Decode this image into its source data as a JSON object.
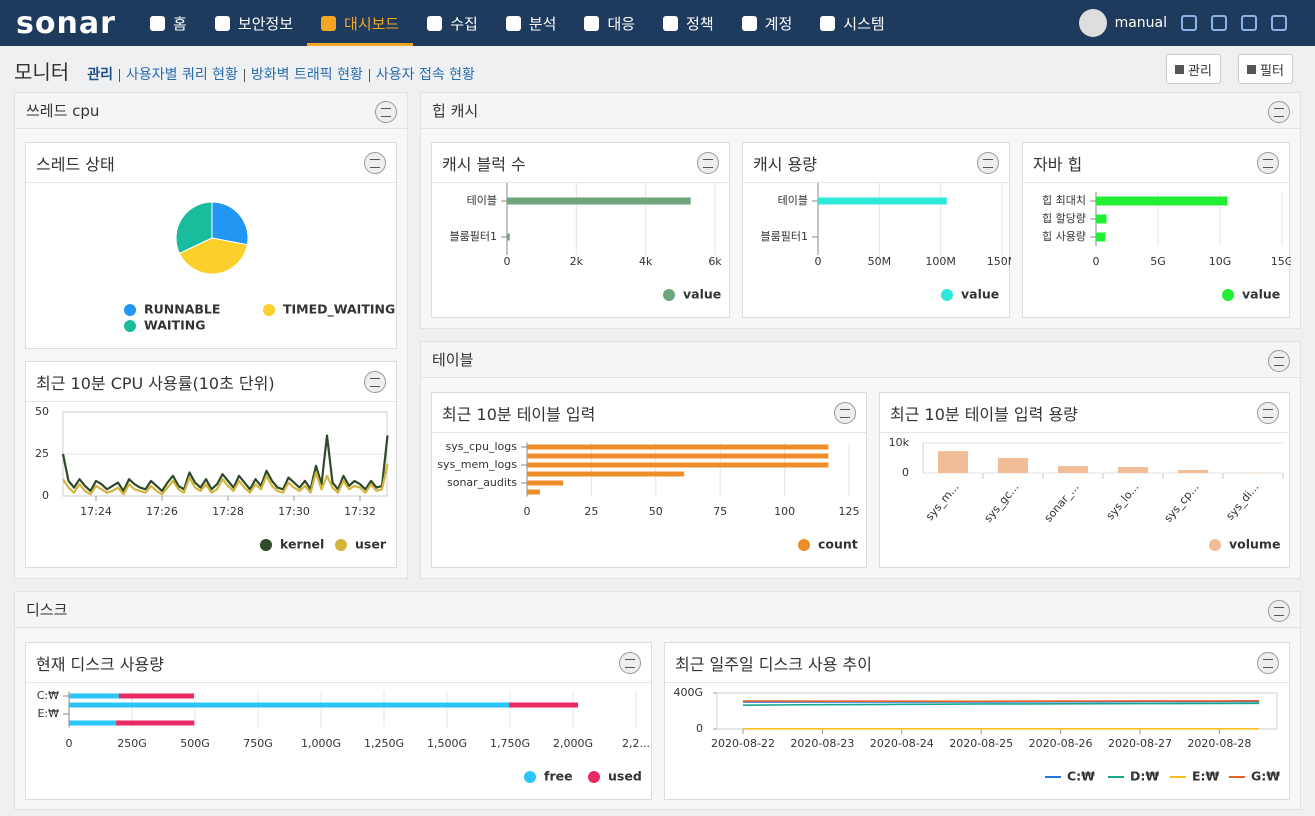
{
  "nav": {
    "logo": "sonar",
    "items": [
      "홈",
      "보안정보",
      "대시보드",
      "수집",
      "분석",
      "대응",
      "정책",
      "계정",
      "시스템"
    ],
    "user": "manual"
  },
  "header": {
    "title": "모니터",
    "links": [
      "관리",
      "사용자별 쿼리 현황",
      "방화벽 트래픽 현황",
      "사용자 접속 현황"
    ],
    "buttons": [
      "관리",
      "필터"
    ]
  },
  "groups": [
    "쓰레드 cpu",
    "힙 캐시",
    "테이블",
    "디스크"
  ],
  "chart_data": [
    {
      "type": "pie",
      "title": "스레드 상태",
      "categories": [
        "RUNNABLE",
        "TIMED_WAITING",
        "WAITING"
      ],
      "values": [
        28,
        40,
        32
      ],
      "colors": [
        "#2196f3",
        "#fbd02a",
        "#19bc9c"
      ]
    },
    {
      "type": "line",
      "title": "최근 10분 CPU 사용률(10초 단위)",
      "categories": [
        null,
        null,
        null,
        null,
        null,
        null,
        "17:24",
        null,
        null,
        null,
        null,
        null,
        null,
        null,
        null,
        null,
        null,
        null,
        "17:26",
        null,
        null,
        null,
        null,
        null,
        null,
        null,
        null,
        null,
        null,
        null,
        "17:28",
        null,
        null,
        null,
        null,
        null,
        null,
        null,
        null,
        null,
        null,
        null,
        "17:30",
        null,
        null,
        null,
        null,
        null,
        null,
        null,
        null,
        null,
        null,
        null,
        "17:32",
        null,
        null,
        null,
        null,
        null
      ],
      "series": [
        {
          "name": "kernel",
          "color": "#2f4a2a",
          "values": [
            25,
            9,
            5,
            10,
            6,
            3,
            9,
            7,
            4,
            6,
            8,
            3,
            10,
            7,
            5,
            4,
            9,
            6,
            3,
            8,
            12,
            6,
            4,
            14,
            8,
            5,
            10,
            4,
            7,
            13,
            9,
            5,
            12,
            8,
            4,
            10,
            6,
            15,
            9,
            5,
            4,
            11,
            8,
            5,
            9,
            4,
            18,
            7,
            36,
            8,
            4,
            12,
            6,
            9,
            7,
            4,
            9,
            5,
            6,
            36
          ]
        },
        {
          "name": "user",
          "color": "#d4b53c",
          "values": [
            10,
            5,
            2,
            7,
            3,
            1,
            6,
            4,
            2,
            3,
            5,
            1,
            7,
            4,
            3,
            2,
            6,
            3,
            1,
            5,
            9,
            4,
            2,
            11,
            5,
            3,
            7,
            2,
            4,
            10,
            6,
            3,
            9,
            5,
            2,
            7,
            4,
            12,
            6,
            3,
            2,
            8,
            5,
            3,
            6,
            2,
            14,
            4,
            12,
            5,
            2,
            9,
            4,
            6,
            5,
            2,
            7,
            3,
            4,
            19
          ]
        }
      ],
      "ylim": [
        0,
        50
      ],
      "yticks": [
        0,
        25,
        50
      ],
      "grid": true
    },
    {
      "type": "hbar",
      "title": "캐시 블럭 수",
      "categories": [
        "테이블",
        "블룸필터1"
      ],
      "values": [
        5300,
        80
      ],
      "color": "#6ea57c",
      "legend": "value",
      "xlim": [
        0,
        6000
      ],
      "xticks": [
        0,
        {
          "value": 2000,
          "label": "2k"
        },
        {
          "value": 4000,
          "label": "4k"
        },
        {
          "value": 6000,
          "label": "6k"
        }
      ]
    },
    {
      "type": "hbar",
      "title": "캐시 용량",
      "categories": [
        "테이블",
        "블룸필터1"
      ],
      "values": [
        105000000,
        0
      ],
      "color": "#2ee8d8",
      "legend": "value",
      "xlim": [
        0,
        150000000
      ],
      "xticks": [
        0,
        {
          "value": 50000000,
          "label": "50M"
        },
        {
          "value": 100000000,
          "label": "100M"
        },
        {
          "value": 150000000,
          "label": "150M"
        }
      ]
    },
    {
      "type": "hbar",
      "title": "자바 힙",
      "categories": [
        "힙 최대치",
        "힙 할당량",
        "힙 사용량"
      ],
      "values": [
        10600000000,
        850000000,
        750000000
      ],
      "color": "#22ee33",
      "legend": "value",
      "xlim": [
        0,
        15000000000
      ],
      "xticks": [
        0,
        {
          "value": 5000000000,
          "label": "5G"
        },
        {
          "value": 10000000000,
          "label": "10G"
        },
        {
          "value": 15000000000,
          "label": "15G"
        }
      ]
    },
    {
      "type": "hbar",
      "title": "최근 10분 테이블 입력",
      "categories": [
        "sys_cpu_logs",
        null,
        "sys_mem_logs",
        null,
        "sonar_audits",
        null
      ],
      "values": [
        117,
        117,
        117,
        61,
        14,
        5
      ],
      "color": "#ee8c2a",
      "legend": "count",
      "xlim": [
        0,
        125
      ],
      "xticks": [
        0,
        25,
        50,
        75,
        100,
        125
      ]
    },
    {
      "type": "vbar",
      "title": "최근 10분 테이블 입력 용량",
      "categories": [
        "sys_m...",
        "sys_gc...",
        "sonar_...",
        "sys_lo...",
        "sys_cp...",
        "sys_di..."
      ],
      "values": [
        7300,
        5000,
        2300,
        2000,
        1000,
        100
      ],
      "color": "#f0bd96",
      "legend": "volume",
      "ylim": [
        0,
        10000
      ],
      "yticks": [
        0,
        {
          "value": 10000,
          "label": "10k"
        }
      ],
      "grid": true
    },
    {
      "type": "hbar",
      "title": "현재 디스크 사용량",
      "categories": [
        "C:₩",
        null,
        "E:₩",
        null
      ],
      "series": [
        {
          "name": "free",
          "color": "#29c5f6",
          "values": [
            198,
            1746,
            0,
            187
          ]
        },
        {
          "name": "used",
          "color": "#ea2a62",
          "values": [
            298,
            274,
            0,
            310
          ]
        }
      ],
      "xlim": [
        0,
        2250
      ],
      "xticks": [
        0,
        {
          "value": 250,
          "label": "250G"
        },
        {
          "value": 500,
          "label": "500G"
        },
        {
          "value": 750,
          "label": "750G"
        },
        {
          "value": 1000,
          "label": "1,000G"
        },
        {
          "value": 1250,
          "label": "1,250G"
        },
        {
          "value": 1500,
          "label": "1,500G"
        },
        {
          "value": 1750,
          "label": "1,750G"
        },
        {
          "value": 2000,
          "label": "2,000G"
        },
        {
          "value": 2250,
          "label": "2,2..."
        }
      ]
    },
    {
      "type": "line",
      "title": "최근 일주일 디스크 사용 추이",
      "categories": [
        "2020-08-22",
        null,
        "2020-08-23",
        null,
        "2020-08-24",
        null,
        "2020-08-25",
        null,
        "2020-08-26",
        null,
        "2020-08-27",
        null,
        "2020-08-28",
        null
      ],
      "series": [
        {
          "name": "C:₩",
          "color": "#1f77e0",
          "values": [
            300,
            300,
            300,
            300,
            300,
            300,
            301,
            302,
            303,
            304,
            305,
            305,
            306,
            306
          ]
        },
        {
          "name": "D:₩",
          "color": "#14a88e",
          "values": [
            265,
            268,
            270,
            272,
            274,
            276,
            278,
            279,
            280,
            281,
            282,
            283,
            284,
            285
          ]
        },
        {
          "name": "E:₩",
          "color": "#f5c020",
          "values": [
            2,
            2,
            2,
            2,
            2,
            2,
            2,
            2,
            2,
            2,
            2,
            2,
            2,
            2
          ]
        },
        {
          "name": "G:₩",
          "color": "#e8602c",
          "values": [
            310,
            310,
            309,
            309,
            309,
            308,
            308,
            309,
            310,
            311,
            312,
            312,
            312,
            313
          ]
        }
      ],
      "ylim": [
        0,
        400
      ],
      "yticks": [
        0,
        {
          "value": 400,
          "label": "400G"
        }
      ],
      "grid": false
    }
  ]
}
